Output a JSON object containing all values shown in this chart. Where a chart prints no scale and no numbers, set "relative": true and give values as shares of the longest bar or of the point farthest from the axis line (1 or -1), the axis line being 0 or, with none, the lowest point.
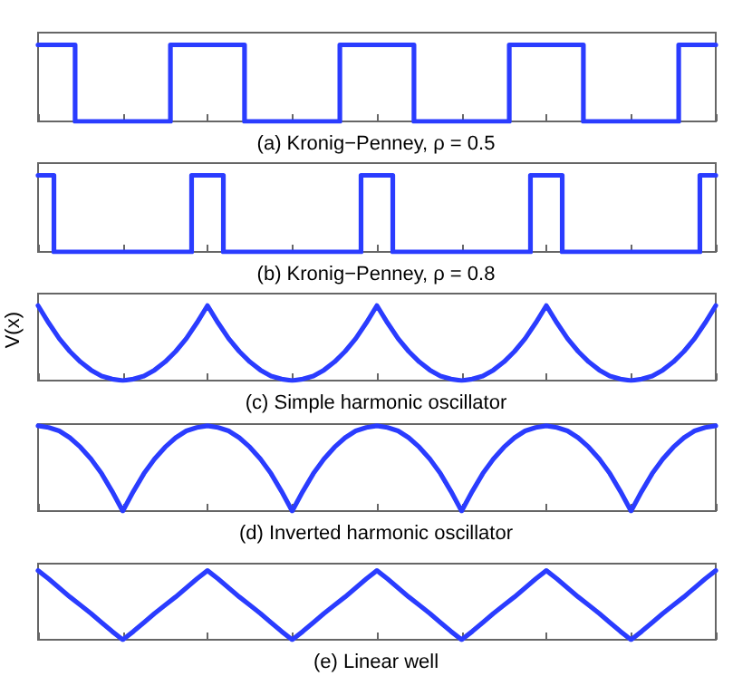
{
  "chart_data": [
    {
      "type": "step",
      "title": "(a) Kronig−Penney, ρ = 0.5",
      "relative": true,
      "color": "#2a3cff",
      "categories": [
        null,
        null,
        null,
        null,
        null,
        null,
        null,
        null,
        null,
        null,
        null,
        null,
        null,
        null,
        null,
        null,
        null,
        null,
        null,
        null,
        null,
        null,
        null,
        null,
        null,
        null,
        null,
        null,
        null,
        null,
        null,
        null,
        null,
        null,
        null,
        null,
        null,
        null,
        null,
        null,
        null,
        null,
        null,
        null,
        null,
        null,
        null,
        null,
        null,
        null,
        null,
        null,
        null,
        null,
        null,
        null,
        null,
        null,
        null,
        null,
        null,
        null,
        null,
        null,
        null
      ],
      "values": [
        1,
        1,
        1,
        1,
        0,
        0,
        0,
        0,
        0,
        0,
        0,
        0,
        0,
        1,
        1,
        1,
        1,
        1,
        1,
        1,
        0,
        0,
        0,
        0,
        0,
        0,
        0,
        0,
        0,
        1,
        1,
        1,
        1,
        1,
        1,
        1,
        0,
        0,
        0,
        0,
        0,
        0,
        0,
        0,
        0,
        1,
        1,
        1,
        1,
        1,
        1,
        1,
        0,
        0,
        0,
        0,
        0,
        0,
        0,
        0,
        0,
        1,
        1,
        1,
        1
      ]
    },
    {
      "type": "step",
      "title": "(b) Kronig−Penney, ρ = 0.8",
      "relative": true,
      "color": "#2a3cff",
      "categories": [
        null,
        null,
        null,
        null,
        null,
        null,
        null,
        null,
        null,
        null,
        null,
        null,
        null,
        null,
        null,
        null,
        null,
        null,
        null,
        null,
        null,
        null,
        null,
        null,
        null,
        null,
        null,
        null,
        null,
        null,
        null,
        null,
        null,
        null,
        null,
        null,
        null,
        null,
        null,
        null,
        null,
        null,
        null,
        null,
        null,
        null,
        null,
        null,
        null,
        null,
        null,
        null,
        null,
        null,
        null,
        null,
        null,
        null,
        null,
        null,
        null,
        null,
        null,
        null,
        null
      ],
      "values": [
        1,
        1,
        0,
        0,
        0,
        0,
        0,
        0,
        0,
        0,
        0,
        0,
        0,
        0,
        0,
        1,
        1,
        1,
        0,
        0,
        0,
        0,
        0,
        0,
        0,
        0,
        0,
        0,
        0,
        0,
        0,
        1,
        1,
        1,
        0,
        0,
        0,
        0,
        0,
        0,
        0,
        0,
        0,
        0,
        0,
        0,
        0,
        1,
        1,
        1,
        0,
        0,
        0,
        0,
        0,
        0,
        0,
        0,
        0,
        0,
        0,
        0,
        0,
        1,
        1
      ]
    },
    {
      "type": "line",
      "title": "(c) Simple harmonic oscillator",
      "ylabel": "V(x)",
      "relative": true,
      "color": "#2a3cff",
      "categories": [
        null,
        null,
        null,
        null,
        null,
        null,
        null,
        null,
        null,
        null,
        null,
        null,
        null,
        null,
        null,
        null,
        null,
        null,
        null,
        null,
        null,
        null,
        null,
        null,
        null,
        null,
        null,
        null,
        null,
        null,
        null,
        null,
        null,
        null,
        null,
        null,
        null,
        null,
        null,
        null,
        null,
        null,
        null,
        null,
        null,
        null,
        null,
        null,
        null,
        null,
        null,
        null,
        null,
        null,
        null,
        null,
        null,
        null,
        null,
        null,
        null,
        null,
        null,
        null,
        null
      ],
      "values": [
        1,
        0.77,
        0.56,
        0.39,
        0.25,
        0.14,
        0.06,
        0.02,
        0,
        0.02,
        0.06,
        0.14,
        0.25,
        0.39,
        0.56,
        0.77,
        1,
        0.77,
        0.56,
        0.39,
        0.25,
        0.14,
        0.06,
        0.02,
        0,
        0.02,
        0.06,
        0.14,
        0.25,
        0.39,
        0.56,
        0.77,
        1,
        0.77,
        0.56,
        0.39,
        0.25,
        0.14,
        0.06,
        0.02,
        0,
        0.02,
        0.06,
        0.14,
        0.25,
        0.39,
        0.56,
        0.77,
        1,
        0.77,
        0.56,
        0.39,
        0.25,
        0.14,
        0.06,
        0.02,
        0,
        0.02,
        0.06,
        0.14,
        0.25,
        0.39,
        0.56,
        0.77,
        1
      ]
    },
    {
      "type": "line",
      "title": "(d) Inverted harmonic oscillator",
      "relative": true,
      "color": "#2a3cff",
      "categories": [
        null,
        null,
        null,
        null,
        null,
        null,
        null,
        null,
        null,
        null,
        null,
        null,
        null,
        null,
        null,
        null,
        null,
        null,
        null,
        null,
        null,
        null,
        null,
        null,
        null,
        null,
        null,
        null,
        null,
        null,
        null,
        null,
        null,
        null,
        null,
        null,
        null,
        null,
        null,
        null,
        null,
        null,
        null,
        null,
        null,
        null,
        null,
        null,
        null,
        null,
        null,
        null,
        null,
        null,
        null,
        null,
        null,
        null,
        null,
        null,
        null,
        null,
        null,
        null,
        null
      ],
      "values": [
        1,
        0.98,
        0.94,
        0.86,
        0.75,
        0.61,
        0.44,
        0.23,
        0,
        0.23,
        0.44,
        0.61,
        0.75,
        0.86,
        0.94,
        0.98,
        1,
        0.98,
        0.94,
        0.86,
        0.75,
        0.61,
        0.44,
        0.23,
        0,
        0.23,
        0.44,
        0.61,
        0.75,
        0.86,
        0.94,
        0.98,
        1,
        0.98,
        0.94,
        0.86,
        0.75,
        0.61,
        0.44,
        0.23,
        0,
        0.23,
        0.44,
        0.61,
        0.75,
        0.86,
        0.94,
        0.98,
        1,
        0.98,
        0.94,
        0.86,
        0.75,
        0.61,
        0.44,
        0.23,
        0,
        0.23,
        0.44,
        0.61,
        0.75,
        0.86,
        0.94,
        0.98,
        1
      ]
    },
    {
      "type": "line",
      "title": "(e) Linear well",
      "relative": true,
      "color": "#2a3cff",
      "categories": [
        null,
        null,
        null,
        null,
        null,
        null,
        null,
        null,
        null,
        null,
        null,
        null,
        null,
        null,
        null,
        null,
        null,
        null,
        null,
        null,
        null,
        null,
        null,
        null,
        null,
        null,
        null,
        null,
        null,
        null,
        null,
        null,
        null,
        null,
        null,
        null,
        null,
        null,
        null,
        null,
        null,
        null,
        null,
        null,
        null,
        null,
        null,
        null,
        null,
        null,
        null,
        null,
        null,
        null,
        null,
        null,
        null,
        null,
        null,
        null,
        null,
        null,
        null,
        null,
        null
      ],
      "values": [
        1,
        0.88,
        0.75,
        0.62,
        0.5,
        0.38,
        0.25,
        0.12,
        0,
        0.12,
        0.25,
        0.38,
        0.5,
        0.62,
        0.75,
        0.88,
        1,
        0.88,
        0.75,
        0.62,
        0.5,
        0.38,
        0.25,
        0.12,
        0,
        0.12,
        0.25,
        0.38,
        0.5,
        0.62,
        0.75,
        0.88,
        1,
        0.88,
        0.75,
        0.62,
        0.5,
        0.38,
        0.25,
        0.12,
        0,
        0.12,
        0.25,
        0.38,
        0.5,
        0.62,
        0.75,
        0.88,
        1,
        0.88,
        0.75,
        0.62,
        0.5,
        0.38,
        0.25,
        0.12,
        0,
        0.12,
        0.25,
        0.38,
        0.5,
        0.62,
        0.75,
        0.88,
        1
      ]
    }
  ]
}
